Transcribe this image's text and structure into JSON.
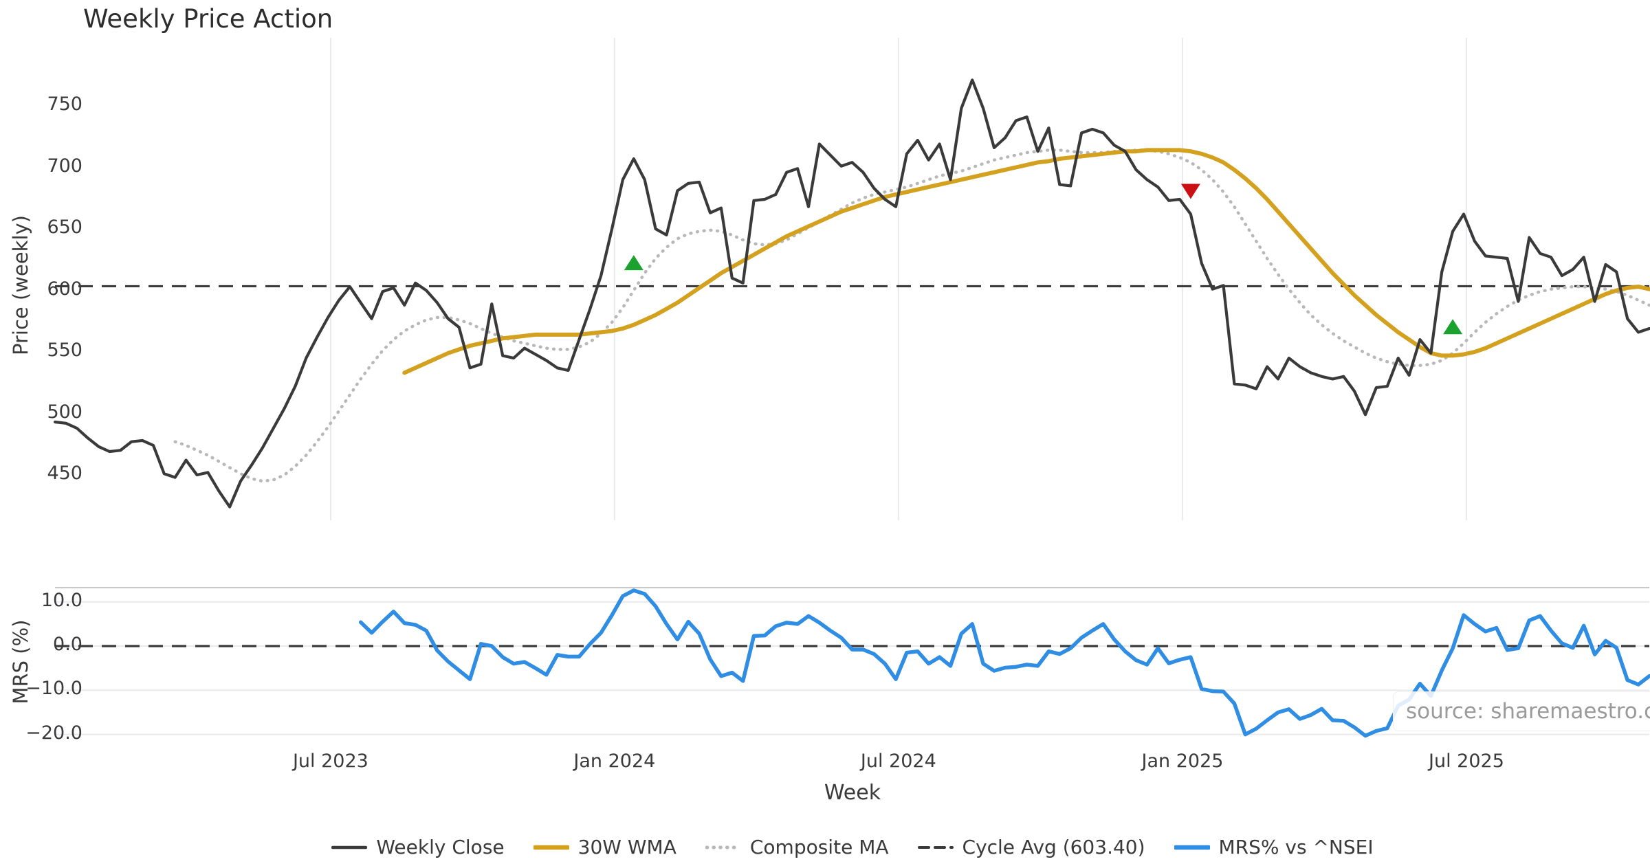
{
  "title": "Weekly Price Action",
  "source_note": "source: sharemaestro.com",
  "colors": {
    "close": "#3a3a3a",
    "wma": "#d4a11f",
    "composite": "#b8b8b8",
    "cycle_avg": "#3a3a3a",
    "mrs": "#2f8de4",
    "buy_marker": "#1aa12e",
    "sell_marker": "#cc0f12",
    "grid": "#e9e9ef",
    "spine": "#c8c8c8",
    "tick_text": "#3a3a3a",
    "source_text": "#9a9a9a"
  },
  "chart_data": {
    "type": "line",
    "title": "Weekly Price Action",
    "xlabel": "Week",
    "x_axis": {
      "unit": "weeks",
      "total_weeks": 146,
      "ticks": [
        {
          "label": "Jul 2023",
          "week": 25.24
        },
        {
          "label": "Jan 2024",
          "week": 51.24
        },
        {
          "label": "Jul 2024",
          "week": 77.24
        },
        {
          "label": "Jan 2025",
          "week": 103.25
        },
        {
          "label": "Jul 2025",
          "week": 129.25
        }
      ]
    },
    "legend": {
      "position": "bottom",
      "items": [
        {
          "label": "Weekly Close",
          "swatch": "solid-dark"
        },
        {
          "label": "30W WMA",
          "swatch": "solid-gold"
        },
        {
          "label": "Composite MA",
          "swatch": "dotted-gray"
        },
        {
          "label": "Cycle Avg (603.40)",
          "swatch": "dashed-dark"
        },
        {
          "label": "MRS% vs ^NSEI",
          "swatch": "solid-blue"
        }
      ]
    },
    "panels": [
      {
        "name": "price",
        "ylabel": "Price (weekly)",
        "ylim": [
          414,
          806
        ],
        "yticks": [
          {
            "label": "750",
            "value": 750
          },
          {
            "label": "700",
            "value": 700
          },
          {
            "label": "650",
            "value": 650
          },
          {
            "label": "600",
            "value": 600
          },
          {
            "label": "550",
            "value": 550
          },
          {
            "label": "500",
            "value": 500
          },
          {
            "label": "450",
            "value": 450
          }
        ],
        "grid": "vertical",
        "cycle_avg_value": 603.4,
        "series": [
          {
            "name": "Weekly Close",
            "style": "solid",
            "start_week": 0,
            "values": [
              493,
              492,
              488,
              480,
              473,
              469,
              470,
              477,
              478,
              474,
              451,
              448,
              462,
              450,
              452,
              437,
              424,
              445,
              458,
              472,
              488,
              504,
              522,
              545,
              562,
              578,
              592,
              603,
              590,
              577,
              599,
              602,
              588,
              606,
              600,
              590,
              577,
              570,
              537,
              540,
              589,
              547,
              545,
              553,
              548,
              543,
              537,
              535,
              560,
              585,
              612,
              650,
              690,
              707,
              690,
              650,
              645,
              681,
              687,
              688,
              663,
              667,
              610,
              606,
              673,
              674,
              678,
              696,
              699,
              668,
              719,
              710,
              701,
              704,
              696,
              683,
              674,
              668,
              711,
              722,
              706,
              719,
              690,
              748,
              771,
              748,
              716,
              724,
              738,
              741,
              713,
              732,
              686,
              685,
              728,
              731,
              728,
              718,
              713,
              698,
              690,
              684,
              673,
              674,
              662,
              622,
              601,
              604,
              524,
              523,
              520,
              538,
              528,
              545,
              538,
              533,
              530,
              528,
              530,
              518,
              499,
              521,
              522,
              545,
              531,
              560,
              549,
              615,
              648,
              662,
              640,
              628,
              627,
              626,
              591,
              643,
              630,
              627,
              612,
              617,
              627,
              591,
              621,
              615,
              577,
              566,
              569
            ]
          },
          {
            "name": "30W WMA",
            "style": "solid",
            "start_week": 32,
            "values": [
              533,
              537,
              541,
              545,
              549,
              552,
              555,
              557,
              559,
              561,
              562,
              563,
              564,
              564,
              564,
              564,
              564,
              565,
              566,
              567,
              569,
              572,
              576,
              580,
              585,
              590,
              596,
              602,
              608,
              614,
              619,
              624,
              629,
              634,
              639,
              644,
              648,
              652,
              656,
              660,
              664,
              667,
              670,
              673,
              676,
              678,
              680,
              682,
              684,
              686,
              688,
              690,
              692,
              694,
              696,
              698,
              700,
              702,
              704,
              705,
              707,
              708,
              709,
              710,
              711,
              712,
              713,
              713,
              714,
              714,
              714,
              714,
              713,
              711,
              708,
              704,
              698,
              691,
              683,
              674,
              664,
              654,
              644,
              634,
              624,
              614,
              605,
              596,
              588,
              580,
              573,
              566,
              560,
              554,
              549,
              547,
              547,
              548,
              550,
              553,
              557,
              561,
              565,
              569,
              573,
              577,
              581,
              585,
              589,
              593,
              597,
              600,
              602,
              603,
              601
            ]
          },
          {
            "name": "Composite MA",
            "style": "dotted",
            "start_week": 11,
            "values": [
              477,
              474,
              470,
              466,
              461,
              456,
              451,
              447,
              445,
              446,
              450,
              457,
              466,
              477,
              489,
              502,
              515,
              528,
              540,
              551,
              560,
              567,
              572,
              576,
              578,
              578,
              576,
              573,
              569,
              565,
              562,
              559,
              557,
              555,
              553,
              552,
              552,
              554,
              558,
              565,
              574,
              586,
              600,
              614,
              626,
              635,
              642,
              646,
              648,
              649,
              648,
              645,
              641,
              638,
              637,
              638,
              641,
              646,
              651,
              656,
              661,
              666,
              671,
              675,
              678,
              680,
              682,
              684,
              687,
              690,
              693,
              695,
              697,
              700,
              703,
              706,
              708,
              710,
              712,
              713,
              714,
              714,
              713,
              712,
              712,
              712,
              713,
              713,
              714,
              714,
              713,
              711,
              708,
              704,
              698,
              690,
              680,
              668,
              654,
              640,
              626,
              613,
              601,
              590,
              580,
              572,
              565,
              559,
              554,
              549,
              545,
              542,
              540,
              539,
              539,
              540,
              543,
              549,
              557,
              566,
              574,
              581,
              587,
              592,
              596,
              599,
              601,
              602,
              603,
              603,
              602,
              601,
              599,
              596,
              592,
              588
            ]
          }
        ],
        "markers": {
          "buy_signals": [
            {
              "week": 53,
              "price": 622
            },
            {
              "week": 128,
              "price": 570
            }
          ],
          "sell_signals": [
            {
              "week": 104,
              "price": 681
            }
          ]
        }
      },
      {
        "name": "mrs",
        "ylabel": "MRS (%)",
        "ylim": [
          -22.5,
          13.2
        ],
        "yticks": [
          {
            "label": "10.0",
            "value": 10
          },
          {
            "label": "0.0",
            "value": 0
          },
          {
            "label": "−10.0",
            "value": -10
          },
          {
            "label": "−20.0",
            "value": -20
          }
        ],
        "grid": "horizontal",
        "zero_line_value": 0.0,
        "series": [
          {
            "name": "MRS% vs ^NSEI",
            "style": "solid",
            "start_week": 28,
            "values": [
              5.4,
              3.0,
              5.5,
              7.8,
              5.2,
              4.8,
              3.5,
              -1.0,
              -3.5,
              -5.5,
              -7.5,
              0.5,
              0.0,
              -2.5,
              -4.0,
              -3.6,
              -5.0,
              -6.5,
              -2.0,
              -2.4,
              -2.4,
              0.5,
              3.0,
              7.0,
              11.3,
              12.6,
              11.8,
              9.0,
              5.0,
              1.5,
              5.5,
              2.8,
              -3.0,
              -6.8,
              -6.0,
              -7.9,
              2.3,
              2.4,
              4.5,
              5.3,
              5.0,
              6.8,
              5.3,
              3.5,
              1.9,
              -0.8,
              -0.8,
              -1.8,
              -4.0,
              -7.5,
              -1.5,
              -1.2,
              -4.0,
              -2.5,
              -4.5,
              2.8,
              5.0,
              -4.0,
              -5.6,
              -4.9,
              -4.7,
              -4.2,
              -4.5,
              -1.2,
              -1.8,
              -0.5,
              1.9,
              3.5,
              5.0,
              1.5,
              -1.2,
              -3.2,
              -4.2,
              -0.5,
              -3.9,
              -3.1,
              -2.5,
              -9.7,
              -10.2,
              -10.3,
              -13.0,
              -20.0,
              -18.7,
              -16.8,
              -15.0,
              -14.3,
              -16.5,
              -15.6,
              -14.2,
              -16.8,
              -16.9,
              -18.4,
              -20.3,
              -19.2,
              -18.6,
              -13.5,
              -12.1,
              -8.5,
              -11.3,
              -5.5,
              -0.5,
              7.0,
              5.0,
              3.3,
              4.1,
              -0.9,
              -0.5,
              5.8,
              6.8,
              3.5,
              0.6,
              -0.4,
              4.6,
              -1.9,
              1.2,
              -0.4,
              -7.7,
              -8.7,
              -6.8
            ]
          }
        ]
      }
    ]
  }
}
